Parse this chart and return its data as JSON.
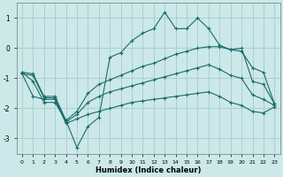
{
  "xlabel": "Humidex (Indice chaleur)",
  "bg_color": "#cce8e8",
  "grid_color": "#aad0d0",
  "line_color": "#1a6b6b",
  "xlim": [
    -0.5,
    23.5
  ],
  "ylim": [
    -3.5,
    1.5
  ],
  "xticks": [
    0,
    1,
    2,
    3,
    4,
    5,
    6,
    7,
    8,
    9,
    10,
    11,
    12,
    13,
    14,
    15,
    16,
    17,
    18,
    19,
    20,
    21,
    22,
    23
  ],
  "yticks": [
    -3,
    -2,
    -1,
    0,
    1
  ],
  "x": [
    0,
    1,
    2,
    3,
    4,
    5,
    6,
    7,
    8,
    9,
    10,
    11,
    12,
    13,
    14,
    15,
    16,
    17,
    18,
    19,
    20,
    21,
    22,
    23
  ],
  "line1": [
    -0.8,
    -1.1,
    -1.8,
    -1.8,
    -2.4,
    -3.3,
    -2.6,
    -2.3,
    -0.3,
    -0.15,
    0.25,
    0.5,
    0.65,
    1.2,
    0.65,
    0.65,
    1.0,
    0.65,
    0.1,
    -0.05,
    0.0,
    -1.1,
    -1.2,
    -1.85
  ],
  "line2": [
    -0.8,
    -0.85,
    -1.6,
    -1.6,
    -2.4,
    -2.1,
    -1.5,
    -1.2,
    -1.05,
    -0.9,
    -0.75,
    -0.6,
    -0.5,
    -0.35,
    -0.2,
    -0.1,
    0.0,
    0.05,
    0.05,
    -0.05,
    -0.1,
    -0.65,
    -0.8,
    -1.85
  ],
  "line3": [
    -0.85,
    -0.9,
    -1.65,
    -1.65,
    -2.45,
    -2.2,
    -1.8,
    -1.6,
    -1.45,
    -1.35,
    -1.25,
    -1.15,
    -1.05,
    -0.95,
    -0.85,
    -0.75,
    -0.65,
    -0.55,
    -0.7,
    -0.9,
    -1.0,
    -1.55,
    -1.7,
    -1.9
  ],
  "line4": [
    -0.85,
    -1.6,
    -1.7,
    -1.7,
    -2.5,
    -2.35,
    -2.2,
    -2.1,
    -2.0,
    -1.9,
    -1.8,
    -1.75,
    -1.7,
    -1.65,
    -1.6,
    -1.55,
    -1.5,
    -1.45,
    -1.6,
    -1.8,
    -1.9,
    -2.1,
    -2.15,
    -1.95
  ]
}
